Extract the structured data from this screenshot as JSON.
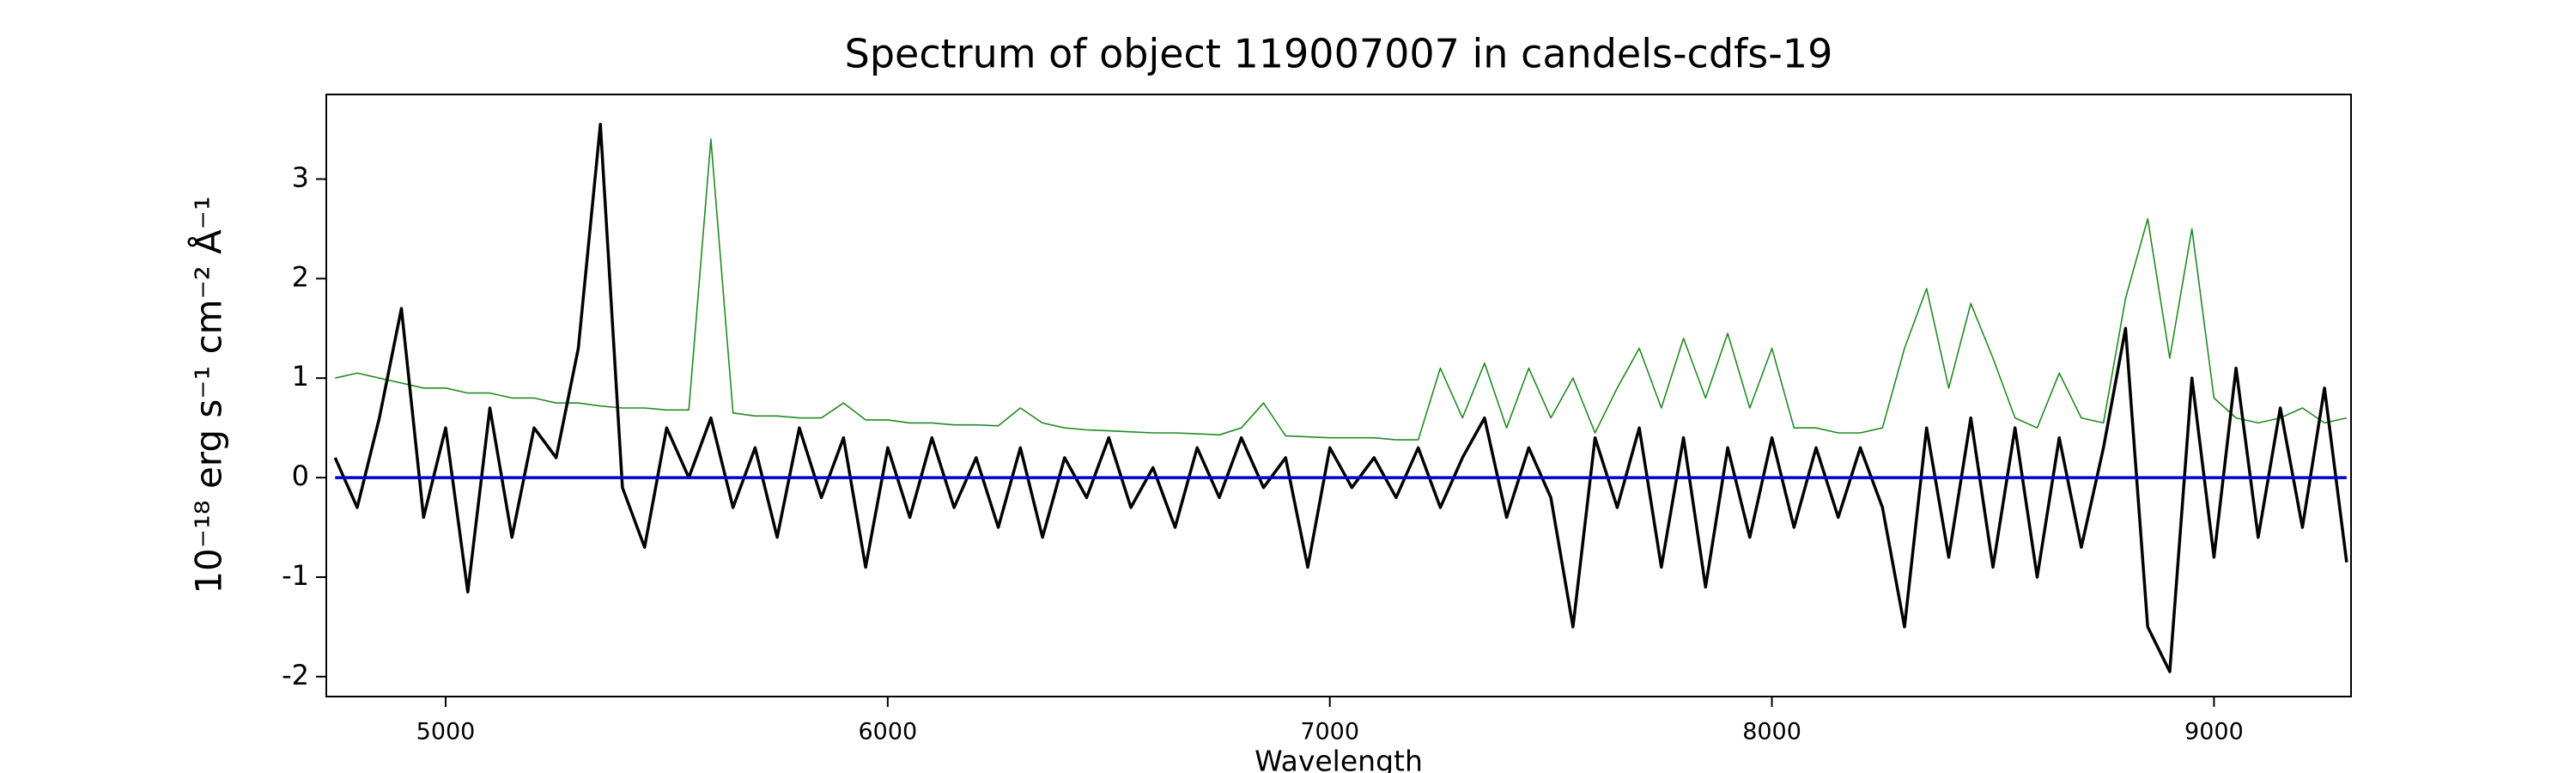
{
  "chart_data": {
    "type": "line",
    "title": "Spectrum of object 119007007 in candels-cdfs-19",
    "xlabel": "Wavelength",
    "ylabel": "10⁻¹⁸ erg s⁻¹ cm⁻² Å⁻¹",
    "x": [
      4750,
      4800,
      4850,
      4900,
      4950,
      5000,
      5050,
      5100,
      5150,
      5200,
      5250,
      5300,
      5350,
      5400,
      5450,
      5500,
      5550,
      5600,
      5650,
      5700,
      5750,
      5800,
      5850,
      5900,
      5950,
      6000,
      6050,
      6100,
      6150,
      6200,
      6250,
      6300,
      6350,
      6400,
      6450,
      6500,
      6550,
      6600,
      6650,
      6700,
      6750,
      6800,
      6850,
      6900,
      6950,
      7000,
      7050,
      7100,
      7150,
      7200,
      7250,
      7300,
      7350,
      7400,
      7450,
      7500,
      7550,
      7600,
      7650,
      7700,
      7750,
      7800,
      7850,
      7900,
      7950,
      8000,
      8050,
      8100,
      8150,
      8200,
      8250,
      8300,
      8350,
      8400,
      8450,
      8500,
      8550,
      8600,
      8650,
      8700,
      8750,
      8800,
      8850,
      8900,
      8950,
      9000,
      9050,
      9100,
      9150,
      9200,
      9250,
      9300
    ],
    "series": [
      {
        "color": "#228b22",
        "width": 1.6,
        "values": [
          1.0,
          1.05,
          1.0,
          0.95,
          0.9,
          0.9,
          0.85,
          0.85,
          0.8,
          0.8,
          0.75,
          0.75,
          0.72,
          0.7,
          0.7,
          0.68,
          0.68,
          3.4,
          0.65,
          0.62,
          0.62,
          0.6,
          0.6,
          0.75,
          0.58,
          0.58,
          0.55,
          0.55,
          0.53,
          0.53,
          0.52,
          0.7,
          0.55,
          0.5,
          0.48,
          0.47,
          0.46,
          0.45,
          0.45,
          0.44,
          0.43,
          0.5,
          0.75,
          0.42,
          0.41,
          0.4,
          0.4,
          0.4,
          0.38,
          0.38,
          1.1,
          0.6,
          1.15,
          0.5,
          1.1,
          0.6,
          1.0,
          0.45,
          0.9,
          1.3,
          0.7,
          1.4,
          0.8,
          1.45,
          0.7,
          1.3,
          0.5,
          0.5,
          0.45,
          0.45,
          0.5,
          1.3,
          1.9,
          0.9,
          1.75,
          1.2,
          0.6,
          0.5,
          1.05,
          0.6,
          0.55,
          1.8,
          2.6,
          1.2,
          2.5,
          0.8,
          0.6,
          0.55,
          0.6,
          0.7,
          0.55,
          0.6
        ]
      },
      {
        "color": "#000000",
        "width": 3.5,
        "values": [
          0.2,
          -0.3,
          0.6,
          1.7,
          -0.4,
          0.5,
          -1.15,
          0.7,
          -0.6,
          0.5,
          0.2,
          1.3,
          3.55,
          -0.1,
          -0.7,
          0.5,
          0.0,
          0.6,
          -0.3,
          0.3,
          -0.6,
          0.5,
          -0.2,
          0.4,
          -0.9,
          0.3,
          -0.4,
          0.4,
          -0.3,
          0.2,
          -0.5,
          0.3,
          -0.6,
          0.2,
          -0.2,
          0.4,
          -0.3,
          0.1,
          -0.5,
          0.3,
          -0.2,
          0.4,
          -0.1,
          0.2,
          -0.9,
          0.3,
          -0.1,
          0.2,
          -0.2,
          0.3,
          -0.3,
          0.2,
          0.6,
          -0.4,
          0.3,
          -0.2,
          -1.5,
          0.4,
          -0.3,
          0.5,
          -0.9,
          0.4,
          -1.1,
          0.3,
          -0.6,
          0.4,
          -0.5,
          0.3,
          -0.4,
          0.3,
          -0.3,
          -1.5,
          0.5,
          -0.8,
          0.6,
          -0.9,
          0.5,
          -1.0,
          0.4,
          -0.7,
          0.3,
          1.5,
          -1.5,
          -1.95,
          1.0,
          -0.8,
          1.1,
          -0.6,
          0.7,
          -0.5,
          0.9,
          -0.85
        ]
      },
      {
        "color": "#0000cd",
        "width": 3.5,
        "x": [
          4750,
          9300
        ],
        "values": [
          0,
          0
        ]
      }
    ],
    "xlim": [
      4730,
      9310
    ],
    "ylim": [
      -2.2,
      3.85
    ],
    "xticks": [
      5000,
      6000,
      7000,
      8000,
      9000
    ],
    "yticks": [
      -2,
      -1,
      0,
      1,
      2,
      3
    ]
  }
}
